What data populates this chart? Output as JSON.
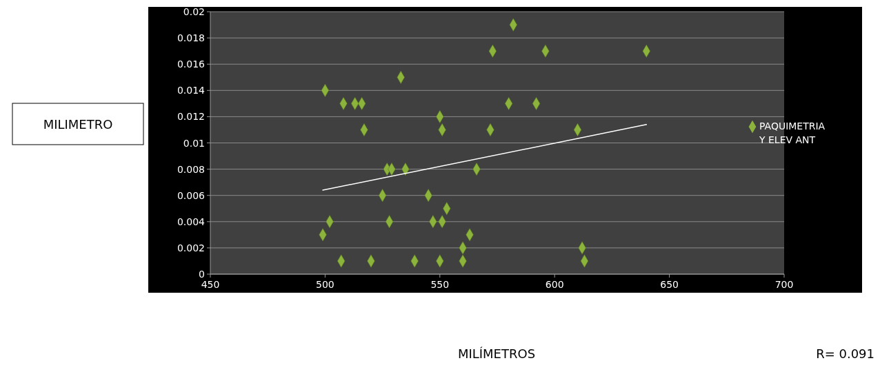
{
  "chart_data": {
    "type": "scatter",
    "xlabel": "MILÍMETROS",
    "annotations": [
      "MILIMETRO",
      "R= 0.091"
    ],
    "xlim": [
      450,
      700
    ],
    "xticks": [
      450,
      500,
      550,
      600,
      650,
      700
    ],
    "ylim": [
      0,
      0.02
    ],
    "yticks": [
      0,
      0.002,
      0.004,
      0.006,
      0.008,
      0.01,
      0.012,
      0.014,
      0.016,
      0.018,
      0.02
    ],
    "grid": "y",
    "legend": "right",
    "marker": "diamond",
    "series": [
      {
        "name": "PAQUIMETRIA Y ELEV ANT",
        "color": "#8cb43c",
        "x": [
          500,
          508,
          513,
          516,
          517,
          533,
          550,
          551,
          572,
          527,
          529,
          535,
          566,
          525,
          545,
          553,
          502,
          528,
          547,
          551,
          499,
          563,
          560,
          507,
          520,
          539,
          550,
          560,
          582,
          573,
          596,
          640,
          580,
          592,
          610,
          612,
          613
        ],
        "values": [
          0.014,
          0.013,
          0.013,
          0.013,
          0.011,
          0.015,
          0.012,
          0.011,
          0.011,
          0.008,
          0.008,
          0.008,
          0.008,
          0.006,
          0.006,
          0.005,
          0.004,
          0.004,
          0.004,
          0.004,
          0.003,
          0.003,
          0.002,
          0.001,
          0.001,
          0.001,
          0.001,
          0.001,
          0.019,
          0.017,
          0.017,
          0.017,
          0.013,
          0.013,
          0.011,
          0.002,
          0.001
        ]
      },
      {
        "type": "line",
        "marker": "none",
        "color": "#ffffff",
        "x": [
          499,
          640
        ],
        "values": [
          0.0064,
          0.0114
        ]
      }
    ]
  }
}
